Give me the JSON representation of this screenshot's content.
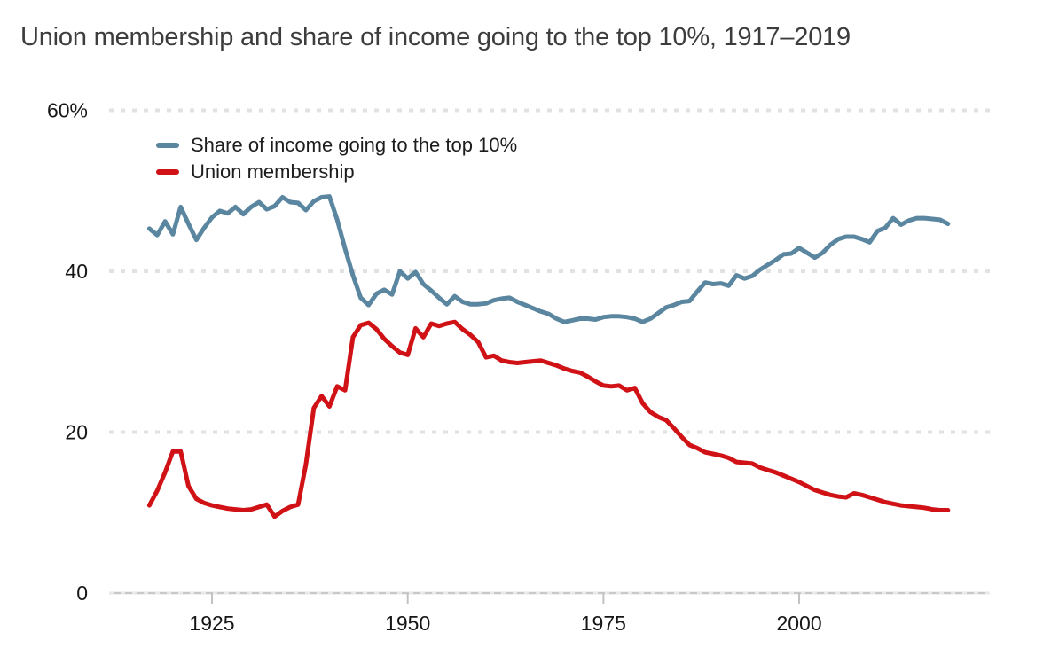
{
  "title": "Union membership and share of income going to the top 10%, 1917–2019",
  "legend": [
    {
      "label": "Share of income going to the top 10%",
      "color": "#5a86a0"
    },
    {
      "label": "Union membership",
      "color": "#d01216"
    }
  ],
  "colors": {
    "income_series": "#5a86a0",
    "union_series": "#d01216",
    "gridline": "#e2e2e2",
    "axis_line": "#c8c8c8",
    "axis_dash_overlay": "#e9e9e9",
    "tick": "#c2c2c2",
    "label_text": "#161616",
    "title_text": "#3d3d3d"
  },
  "y_axis": {
    "tick_labels": [
      "60%",
      "40",
      "20",
      "0"
    ],
    "tick_values": [
      60,
      40,
      20,
      0
    ]
  },
  "x_axis": {
    "tick_labels": [
      "1925",
      "1950",
      "1975",
      "2000"
    ],
    "tick_values": [
      1925,
      1950,
      1975,
      2000
    ]
  },
  "chart_data": {
    "type": "line",
    "title": "Union membership and share of income going to the top 10%, 1917–2019",
    "xlabel": "",
    "ylabel": "",
    "xlim": [
      1917,
      2019
    ],
    "ylim": [
      0,
      60
    ],
    "grid": "horizontal dotted at 20/40/60, solid baseline at 0",
    "legend_position": "top-left inside plot",
    "x": [
      1917,
      1918,
      1919,
      1920,
      1921,
      1922,
      1923,
      1924,
      1925,
      1926,
      1927,
      1928,
      1929,
      1930,
      1931,
      1932,
      1933,
      1934,
      1935,
      1936,
      1937,
      1938,
      1939,
      1940,
      1941,
      1942,
      1943,
      1944,
      1945,
      1946,
      1947,
      1948,
      1949,
      1950,
      1951,
      1952,
      1953,
      1954,
      1955,
      1956,
      1957,
      1958,
      1959,
      1960,
      1961,
      1962,
      1963,
      1964,
      1965,
      1966,
      1967,
      1968,
      1969,
      1970,
      1971,
      1972,
      1973,
      1974,
      1975,
      1976,
      1977,
      1978,
      1979,
      1980,
      1981,
      1982,
      1983,
      1984,
      1985,
      1986,
      1987,
      1988,
      1989,
      1990,
      1991,
      1992,
      1993,
      1994,
      1995,
      1996,
      1997,
      1998,
      1999,
      2000,
      2001,
      2002,
      2003,
      2004,
      2005,
      2006,
      2007,
      2008,
      2009,
      2010,
      2011,
      2012,
      2013,
      2014,
      2015,
      2016,
      2017,
      2018,
      2019
    ],
    "series": [
      {
        "name": "Share of income going to the top 10%",
        "color": "#5a86a0",
        "values": [
          45.3,
          44.5,
          46.2,
          44.6,
          48.0,
          45.9,
          43.9,
          45.4,
          46.7,
          47.5,
          47.2,
          48.0,
          47.1,
          48.0,
          48.6,
          47.7,
          48.1,
          49.2,
          48.6,
          48.5,
          47.6,
          48.7,
          49.2,
          49.3,
          46.4,
          42.8,
          39.5,
          36.7,
          35.8,
          37.2,
          37.7,
          37.1,
          40.0,
          39.1,
          39.9,
          38.4,
          37.6,
          36.7,
          35.9,
          36.9,
          36.2,
          35.9,
          35.9,
          36.0,
          36.4,
          36.6,
          36.7,
          36.2,
          35.8,
          35.4,
          35.0,
          34.7,
          34.1,
          33.7,
          33.9,
          34.1,
          34.1,
          34.0,
          34.3,
          34.4,
          34.4,
          34.3,
          34.1,
          33.7,
          34.1,
          34.8,
          35.5,
          35.8,
          36.2,
          36.3,
          37.5,
          38.6,
          38.4,
          38.5,
          38.2,
          39.5,
          39.1,
          39.4,
          40.2,
          40.8,
          41.4,
          42.1,
          42.2,
          42.9,
          42.3,
          41.7,
          42.3,
          43.3,
          44.0,
          44.3,
          44.3,
          44.0,
          43.6,
          45.0,
          45.4,
          46.6,
          45.8,
          46.3,
          46.6,
          46.6,
          46.5,
          46.4,
          45.9
        ]
      },
      {
        "name": "Union membership",
        "color": "#d01216",
        "values": [
          10.9,
          12.7,
          15.0,
          17.6,
          17.6,
          13.3,
          11.7,
          11.2,
          10.9,
          10.7,
          10.5,
          10.4,
          10.3,
          10.4,
          10.7,
          11.0,
          9.5,
          10.2,
          10.7,
          11.0,
          16.0,
          23.0,
          24.5,
          23.2,
          25.7,
          25.2,
          31.8,
          33.3,
          33.6,
          32.8,
          31.6,
          30.7,
          29.9,
          29.6,
          32.9,
          31.8,
          33.5,
          33.2,
          33.5,
          33.7,
          32.8,
          32.1,
          31.2,
          29.3,
          29.5,
          28.9,
          28.7,
          28.6,
          28.7,
          28.8,
          28.9,
          28.6,
          28.3,
          27.9,
          27.6,
          27.4,
          26.9,
          26.3,
          25.8,
          25.7,
          25.8,
          25.2,
          25.5,
          23.6,
          22.5,
          21.9,
          21.5,
          20.5,
          19.4,
          18.4,
          18.0,
          17.5,
          17.3,
          17.1,
          16.8,
          16.3,
          16.2,
          16.1,
          15.6,
          15.3,
          15.0,
          14.6,
          14.2,
          13.8,
          13.3,
          12.8,
          12.5,
          12.2,
          12.0,
          11.9,
          12.4,
          12.2,
          11.9,
          11.6,
          11.3,
          11.1,
          10.9,
          10.8,
          10.7,
          10.6,
          10.4,
          10.3,
          10.3
        ]
      }
    ]
  }
}
